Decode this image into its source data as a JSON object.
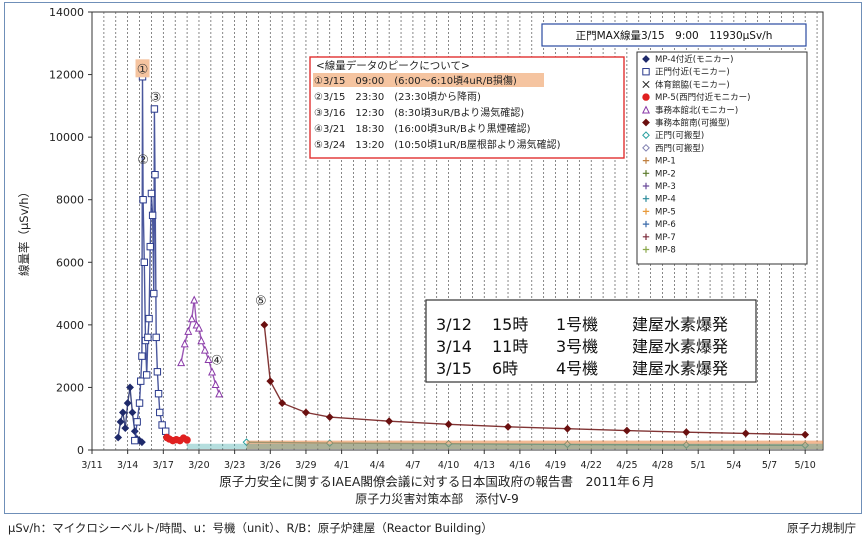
{
  "chart_data": {
    "type": "scatter",
    "title": "",
    "ylabel": "線量率（μSv/h）",
    "xlabel": "",
    "ylim": [
      0,
      14000
    ],
    "yticks": [
      0,
      2000,
      4000,
      6000,
      8000,
      10000,
      12000,
      14000
    ],
    "xticks": [
      "3/11",
      "3/14",
      "3/17",
      "3/20",
      "3/23",
      "3/26",
      "3/29",
      "4/1",
      "4/4",
      "4/7",
      "4/10",
      "4/13",
      "4/16",
      "4/19",
      "4/22",
      "4/25",
      "4/28",
      "5/1",
      "5/4",
      "5/7",
      "5/10"
    ],
    "x_start": "3/11",
    "max_box": "正門MAX線量3/15　9:00　11930μSv/h",
    "peaks_title": "<線量データのピークについて>",
    "peaks": [
      {
        "num": "①",
        "date": "3/15",
        "time": "09:00",
        "note": "(6:00～6:10頃4uR/B損傷)"
      },
      {
        "num": "②",
        "date": "3/15",
        "time": "23:30",
        "note": "(23:30頃から降雨)"
      },
      {
        "num": "③",
        "date": "3/16",
        "time": "12:30",
        "note": "(8:30頃3uR/Bより湯気確認)"
      },
      {
        "num": "④",
        "date": "3/21",
        "time": "18:30",
        "note": "(16:00頃3uR/Bより黒煙確認)"
      },
      {
        "num": "⑤",
        "date": "3/24",
        "time": "13:20",
        "note": "(10:50頃1uR/B屋根部より湯気確認)"
      }
    ],
    "events": [
      {
        "date": "3/12",
        "time": "15時",
        "unit": "1号機",
        "label": "建屋水素爆発"
      },
      {
        "date": "3/14",
        "time": "11時",
        "unit": "3号機",
        "label": "建屋水素爆発"
      },
      {
        "date": "3/15",
        "time": "6時",
        "unit": "4号機",
        "label": "建屋水素爆発"
      }
    ],
    "legend": [
      {
        "name": "MP-4付近(モニカー)",
        "marker": "diamond",
        "color": "#1f2a6b"
      },
      {
        "name": "正門付近(モニカー)",
        "marker": "square-open",
        "color": "#2a3a8c"
      },
      {
        "name": "体育館脇(モニカー)",
        "marker": "x",
        "color": "#222222"
      },
      {
        "name": "MP-5(西門付近モニカー)",
        "marker": "circle",
        "color": "#e02020"
      },
      {
        "name": "事務本館北(モニカー)",
        "marker": "triangle-open",
        "color": "#8a3aa8"
      },
      {
        "name": "事務本館南(可搬型)",
        "marker": "diamond",
        "color": "#6b1010"
      },
      {
        "name": "正門(可搬型)",
        "marker": "diamond-open",
        "color": "#2aa0a0"
      },
      {
        "name": "西門(可搬型)",
        "marker": "diamond-open",
        "color": "#8080b0"
      },
      {
        "name": "MP-1",
        "marker": "plus",
        "color": "#c08040"
      },
      {
        "name": "MP-2",
        "marker": "plus",
        "color": "#5a7a2a"
      },
      {
        "name": "MP-3",
        "marker": "plus",
        "color": "#6a4a9a"
      },
      {
        "name": "MP-4",
        "marker": "plus",
        "color": "#2a8a9a"
      },
      {
        "name": "MP-5",
        "marker": "plus",
        "color": "#e89a3a"
      },
      {
        "name": "MP-6",
        "marker": "plus",
        "color": "#3a6aaa"
      },
      {
        "name": "MP-7",
        "marker": "plus",
        "color": "#7a2a3a"
      },
      {
        "name": "MP-8",
        "marker": "plus",
        "color": "#8aa84a"
      }
    ],
    "series": [
      {
        "name": "MP-4付近(モニカー)",
        "color": "#1f2a6b",
        "marker": "diamond",
        "points": [
          [
            2.2,
            400
          ],
          [
            2.4,
            900
          ],
          [
            2.6,
            1200
          ],
          [
            2.8,
            700
          ],
          [
            3.0,
            1500
          ],
          [
            3.2,
            2000
          ],
          [
            3.4,
            1200
          ],
          [
            3.6,
            600
          ],
          [
            3.8,
            350
          ],
          [
            4.0,
            300
          ],
          [
            4.2,
            250
          ]
        ]
      },
      {
        "name": "正門付近(モニカー)",
        "color": "#2a3a8c",
        "marker": "square-open",
        "points": [
          [
            3.6,
            300
          ],
          [
            3.8,
            900
          ],
          [
            4.0,
            1500
          ],
          [
            4.1,
            2200
          ],
          [
            4.2,
            3000
          ],
          [
            4.25,
            11930
          ],
          [
            4.3,
            8000
          ],
          [
            4.4,
            6000
          ],
          [
            4.5,
            3500
          ],
          [
            4.6,
            2400
          ],
          [
            4.7,
            3600
          ],
          [
            4.8,
            4200
          ],
          [
            4.9,
            6500
          ],
          [
            5.0,
            8200
          ],
          [
            5.1,
            7500
          ],
          [
            5.2,
            5000
          ],
          [
            5.25,
            10900
          ],
          [
            5.3,
            8800
          ],
          [
            5.4,
            3600
          ],
          [
            5.5,
            2500
          ],
          [
            5.6,
            1800
          ],
          [
            5.7,
            1200
          ],
          [
            5.9,
            800
          ],
          [
            6.2,
            600
          ]
        ]
      },
      {
        "name": "MP-5(西門付近モニカー)",
        "color": "#e02020",
        "marker": "circle",
        "points": [
          [
            6.3,
            400
          ],
          [
            6.5,
            350
          ],
          [
            6.8,
            300
          ],
          [
            7.1,
            330
          ],
          [
            7.4,
            300
          ],
          [
            7.7,
            380
          ],
          [
            8.0,
            320
          ]
        ]
      },
      {
        "name": "事務本館北(モニカー)",
        "color": "#8a3aa8",
        "marker": "triangle-open",
        "points": [
          [
            7.5,
            2800
          ],
          [
            7.8,
            3400
          ],
          [
            8.1,
            3800
          ],
          [
            8.4,
            4200
          ],
          [
            8.6,
            4800
          ],
          [
            8.8,
            4000
          ],
          [
            9.0,
            3900
          ],
          [
            9.2,
            3500
          ],
          [
            9.5,
            3200
          ],
          [
            9.8,
            2900
          ],
          [
            10.1,
            2500
          ],
          [
            10.4,
            2100
          ],
          [
            10.7,
            1800
          ]
        ]
      },
      {
        "name": "事務本館南(可搬型)",
        "color": "#6b1010",
        "marker": "diamond",
        "points": [
          [
            14.5,
            4000
          ],
          [
            15,
            2200
          ],
          [
            16,
            1500
          ],
          [
            18,
            1200
          ],
          [
            20,
            1050
          ],
          [
            25,
            920
          ],
          [
            30,
            820
          ],
          [
            35,
            740
          ],
          [
            40,
            680
          ],
          [
            45,
            620
          ],
          [
            50,
            570
          ],
          [
            55,
            530
          ],
          [
            60,
            490
          ]
        ]
      },
      {
        "name": "正門(可搬型)",
        "color": "#2aa0a0",
        "marker": "diamond-open",
        "points": [
          [
            13,
            250
          ],
          [
            20,
            220
          ],
          [
            30,
            200
          ],
          [
            40,
            180
          ],
          [
            50,
            160
          ],
          [
            60,
            150
          ]
        ]
      }
    ]
  },
  "footer": {
    "title": "原子力安全に関するIAEA閣僚会議に対する日本国政府の報告書　2011年６月",
    "subtitle": "原子力災害対策本部　添付V-9",
    "note": "μSv/h：マイクロシーベルト/時間、u：号機（unit）、R/B：原子炉建屋（Reactor Building）",
    "org": "原子力規制庁"
  }
}
